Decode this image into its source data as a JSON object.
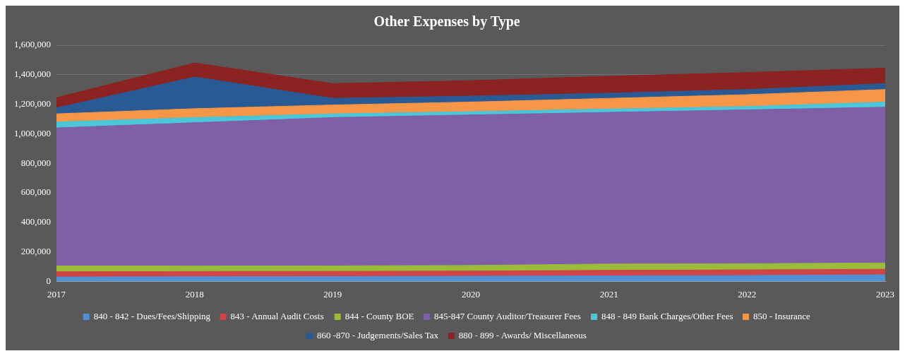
{
  "chart_data": {
    "type": "area",
    "title": "Other Expenses by Type",
    "stacked": true,
    "categories": [
      "2017",
      "2018",
      "2019",
      "2020",
      "2021",
      "2022",
      "2023"
    ],
    "series": [
      {
        "name": "840 - 842 - Dues/Fees/Shipping",
        "color": "#4f8fd6",
        "values": [
          30000,
          32000,
          33000,
          35000,
          38000,
          40000,
          45000
        ]
      },
      {
        "name": "843 - Annual Audit Costs",
        "color": "#d04545",
        "values": [
          35000,
          35000,
          35000,
          35000,
          37000,
          38000,
          37000
        ]
      },
      {
        "name": "844 - County BOE",
        "color": "#9bbb3a",
        "values": [
          40000,
          38000,
          37000,
          38000,
          43000,
          42000,
          43000
        ]
      },
      {
        "name": "845-847 County Auditor/Treasurer Fees",
        "color": "#7f5fa8",
        "values": [
          935000,
          970000,
          1005000,
          1020000,
          1027000,
          1042000,
          1055000
        ]
      },
      {
        "name": "848 - 849 Bank Charges/Other Fees",
        "color": "#4bc7d9",
        "values": [
          40000,
          35000,
          25000,
          22000,
          23000,
          23000,
          35000
        ]
      },
      {
        "name": "850 - Insurance",
        "color": "#f79646",
        "values": [
          55000,
          60000,
          60000,
          65000,
          72000,
          80000,
          85000
        ]
      },
      {
        "name": "860 -870 - Judgements/Sales Tax",
        "color": "#2a5a94",
        "values": [
          40000,
          215000,
          45000,
          40000,
          35000,
          35000,
          40000
        ]
      },
      {
        "name": "880 - 899 - Awards/ Miscellaneous",
        "color": "#8c2323",
        "values": [
          70000,
          95000,
          100000,
          105000,
          115000,
          115000,
          105000
        ]
      }
    ],
    "ylim": [
      0,
      1600000
    ],
    "yticks": [
      0,
      {
        "value": 200000,
        "label": "200,000"
      },
      {
        "value": 400000,
        "label": "400,000"
      },
      {
        "value": 600000,
        "label": "600,000"
      },
      {
        "value": 800000,
        "label": "800,000"
      },
      {
        "value": 1000000,
        "label": "1,000,000"
      },
      {
        "value": 1200000,
        "label": "1,200,000"
      },
      {
        "value": 1400000,
        "label": "1,400,000"
      },
      {
        "value": 1600000,
        "label": "1,600,000"
      }
    ],
    "grid": "y",
    "legend": "bottom"
  }
}
